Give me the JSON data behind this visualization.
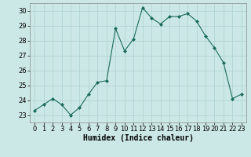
{
  "x": [
    0,
    1,
    2,
    3,
    4,
    5,
    6,
    7,
    8,
    9,
    10,
    11,
    12,
    13,
    14,
    15,
    16,
    17,
    18,
    19,
    20,
    21,
    22,
    23
  ],
  "y": [
    23.3,
    23.7,
    24.1,
    23.7,
    23.0,
    23.5,
    24.4,
    25.2,
    25.3,
    28.8,
    27.3,
    28.1,
    30.2,
    29.5,
    29.1,
    29.6,
    29.6,
    29.8,
    29.3,
    28.3,
    27.5,
    26.5,
    24.1,
    24.4
  ],
  "xlabel": "Humidex (Indice chaleur)",
  "ylim": [
    22.5,
    30.5
  ],
  "xlim": [
    -0.5,
    23.5
  ],
  "yticks": [
    23,
    24,
    25,
    26,
    27,
    28,
    29,
    30
  ],
  "xticks": [
    0,
    1,
    2,
    3,
    4,
    5,
    6,
    7,
    8,
    9,
    10,
    11,
    12,
    13,
    14,
    15,
    16,
    17,
    18,
    19,
    20,
    21,
    22,
    23
  ],
  "line_color": "#1a6b5a",
  "marker": "D",
  "marker_size": 2.0,
  "bg_color": "#cce8e6",
  "grid_color": "#b0d4d2",
  "axis_bg": "#cce8e6",
  "xlabel_fontsize": 7,
  "tick_fontsize": 6.0
}
